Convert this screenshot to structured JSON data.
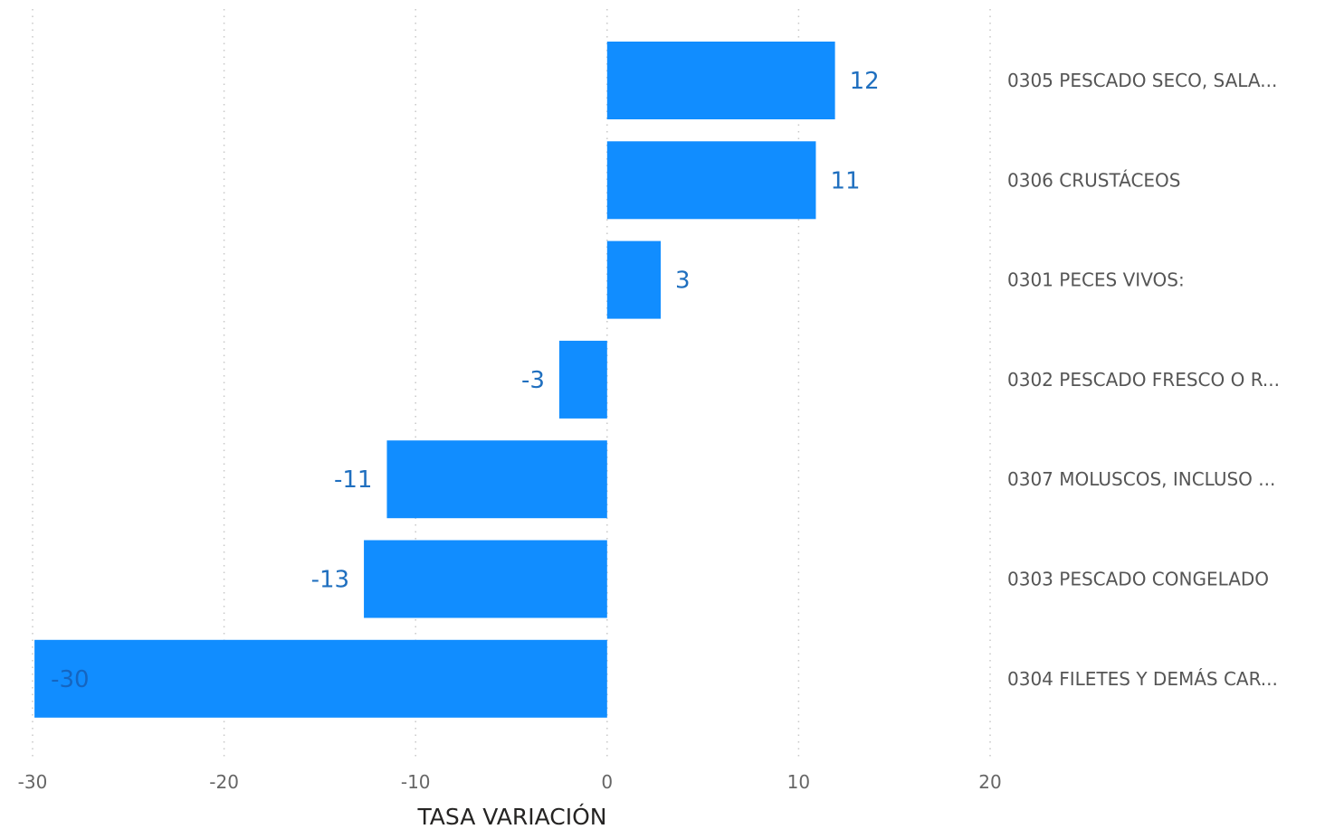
{
  "chart_data": {
    "type": "bar",
    "orientation": "horizontal",
    "categories": [
      "0305 PESCADO SECO, SALA...",
      "0306 CRUSTÁCEOS",
      "0301 PECES VIVOS:",
      "0302 PESCADO FRESCO O R...",
      "0307 MOLUSCOS, INCLUSO ...",
      "0303 PESCADO CONGELADO",
      "0304 FILETES Y DEMÁS CAR..."
    ],
    "values": [
      11.9,
      10.9,
      2.8,
      -2.5,
      -11.5,
      -12.7,
      -29.9
    ],
    "data_labels": [
      "12",
      "11",
      "3",
      "-3",
      "-11",
      "-13",
      "-30"
    ],
    "xlabel": "TASA VARIACIÓN",
    "xlim": [
      -30,
      20
    ],
    "xticks": [
      -30,
      -20,
      -10,
      0,
      10,
      20
    ],
    "xtick_labels": [
      "-30",
      "-20",
      "-10",
      "0",
      "10",
      "20"
    ],
    "grid": "vertical dotted",
    "category_labels_position": "right",
    "colors": {
      "bar": "#118dff",
      "data_label": "#1f6fbf",
      "data_label_inside": "#1565c0",
      "grid": "#c8c8c8",
      "tick_label": "#666666",
      "category_label": "#555555",
      "axis_title": "#252423"
    }
  }
}
